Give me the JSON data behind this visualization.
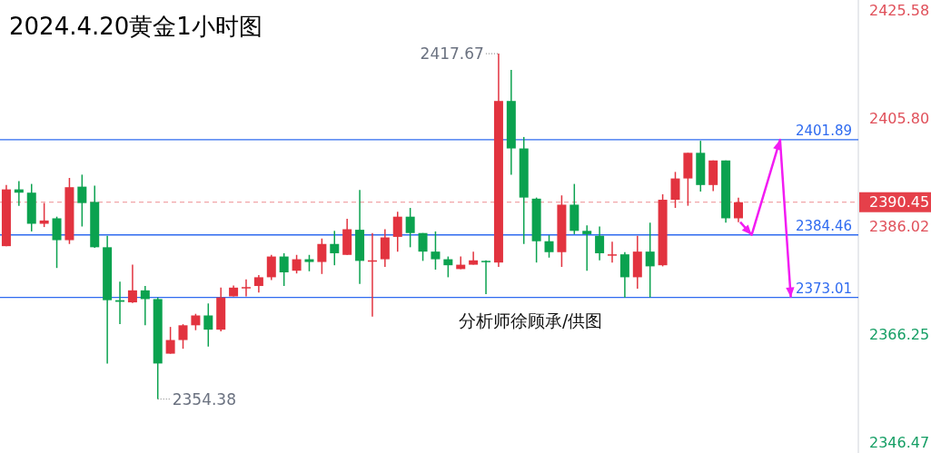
{
  "chart_data": {
    "type": "candlestick",
    "title": "2024.4.20黄金1小时图",
    "categories": [
      null,
      null,
      null,
      null,
      null,
      null,
      null,
      null,
      null,
      null,
      null,
      null,
      null,
      null,
      null,
      null,
      null,
      null,
      null,
      null,
      null,
      null,
      null,
      null,
      null,
      null,
      null,
      null,
      null,
      null,
      null,
      null,
      null,
      null,
      null,
      null,
      null,
      null,
      null,
      null,
      null,
      null,
      null,
      null,
      null,
      null,
      null,
      null,
      null,
      null,
      null,
      null,
      null,
      null,
      null,
      null,
      null,
      null,
      null,
      null,
      null,
      null,
      null,
      null,
      null,
      null,
      null,
      null
    ],
    "ohlc": [
      [
        2382.4,
        2393.6,
        2382.4,
        2392.8
      ],
      [
        2392.8,
        2394.3,
        2389.8,
        2392.2
      ],
      [
        2392.2,
        2393.8,
        2385.1,
        2386.5
      ],
      [
        2386.5,
        2390.3,
        2385.9,
        2387.1
      ],
      [
        2387.5,
        2387.8,
        2378.4,
        2383.5
      ],
      [
        2383.5,
        2394.9,
        2382.8,
        2393.2
      ],
      [
        2393.3,
        2395.5,
        2386.0,
        2390.3
      ],
      [
        2390.5,
        2393.5,
        2382.1,
        2382.2
      ],
      [
        2382.2,
        2384.3,
        2360.9,
        2372.5
      ],
      [
        2372.5,
        2375.9,
        2368.1,
        2372.2
      ],
      [
        2372.1,
        2379.0,
        2372.0,
        2374.3
      ],
      [
        2374.3,
        2375.1,
        2367.9,
        2372.7
      ],
      [
        2372.7,
        2373.0,
        2354.38,
        2360.9
      ],
      [
        2362.7,
        2367.6,
        2362.7,
        2365.2
      ],
      [
        2365.2,
        2368.1,
        2363.6,
        2367.9
      ],
      [
        2367.9,
        2370.0,
        2367.0,
        2369.7
      ],
      [
        2369.7,
        2371.9,
        2364.0,
        2367.1
      ],
      [
        2367.1,
        2374.8,
        2366.8,
        2373.0
      ],
      [
        2373.2,
        2375.2,
        2373.2,
        2374.8
      ],
      [
        2374.8,
        2376.3,
        2373.2,
        2374.9
      ],
      [
        2375.1,
        2377.1,
        2373.9,
        2376.7
      ],
      [
        2376.7,
        2380.8,
        2376.2,
        2380.5
      ],
      [
        2380.5,
        2381.1,
        2375.1,
        2377.6
      ],
      [
        2377.9,
        2380.8,
        2377.4,
        2380.0
      ],
      [
        2380.0,
        2380.8,
        2377.8,
        2379.5
      ],
      [
        2379.5,
        2383.8,
        2377.3,
        2382.8
      ],
      [
        2382.8,
        2385.2,
        2378.9,
        2381.1
      ],
      [
        2380.8,
        2387.4,
        2380.8,
        2385.5
      ],
      [
        2385.4,
        2392.7,
        2375.5,
        2379.7
      ],
      [
        2379.7,
        2384.8,
        2369.5,
        2379.8
      ],
      [
        2380.0,
        2385.5,
        2378.6,
        2384.0
      ],
      [
        2384.1,
        2388.7,
        2381.4,
        2387.8
      ],
      [
        2387.8,
        2389.4,
        2382.2,
        2384.8
      ],
      [
        2384.8,
        2384.8,
        2379.7,
        2381.4
      ],
      [
        2381.4,
        2385.1,
        2378.1,
        2380.0
      ],
      [
        2380.0,
        2380.5,
        2376.7,
        2378.9
      ],
      [
        2378.2,
        2380.5,
        2378.2,
        2379.0
      ],
      [
        2379.0,
        2381.4,
        2379.0,
        2379.8
      ],
      [
        2379.7,
        2379.8,
        2373.6,
        2379.5
      ],
      [
        2379.4,
        2417.67,
        2378.6,
        2409.0
      ],
      [
        2409.0,
        2414.7,
        2395.5,
        2400.3
      ],
      [
        2400.3,
        2402.4,
        2382.8,
        2391.3
      ],
      [
        2391.1,
        2391.3,
        2379.4,
        2383.3
      ],
      [
        2383.3,
        2384.4,
        2380.3,
        2381.3
      ],
      [
        2381.3,
        2391.7,
        2378.6,
        2390.0
      ],
      [
        2390.0,
        2393.8,
        2384.6,
        2385.2
      ],
      [
        2385.2,
        2386.2,
        2377.9,
        2384.6
      ],
      [
        2384.3,
        2386.0,
        2379.8,
        2381.1
      ],
      [
        2380.8,
        2383.2,
        2379.4,
        2380.9
      ],
      [
        2380.9,
        2381.3,
        2373.0,
        2376.7
      ],
      [
        2376.7,
        2384.3,
        2374.6,
        2381.4
      ],
      [
        2381.4,
        2386.7,
        2373.0,
        2378.7
      ],
      [
        2378.9,
        2391.9,
        2378.7,
        2390.9
      ],
      [
        2390.9,
        2396.0,
        2389.4,
        2394.8
      ],
      [
        2394.8,
        2399.5,
        2389.8,
        2399.5
      ],
      [
        2399.5,
        2401.7,
        2392.4,
        2393.6
      ],
      [
        2393.6,
        2398.1,
        2392.5,
        2398.1
      ],
      [
        2398.1,
        2398.1,
        2386.7,
        2387.5
      ],
      [
        2387.5,
        2391.3,
        2386.8,
        2390.45
      ],
      null,
      null,
      null,
      null,
      null,
      null,
      null,
      null,
      null
    ],
    "ylim": [
      2344.5,
      2427.5
    ],
    "yticks": [
      2425.58,
      {
        "value": 2405.8,
        "label": "2405.80"
      },
      2386.02,
      2366.25,
      2346.47
    ],
    "ref_lines": [
      {
        "axis": "y",
        "value": 2401.89,
        "label": "2401.89",
        "color": "#2f6bf0"
      },
      {
        "axis": "y",
        "value": 2384.46,
        "label": "2384.46",
        "color": "#2f6bf0"
      },
      {
        "axis": "y",
        "value": 2373.01,
        "label": "2373.01",
        "color": "#2f6bf0"
      },
      {
        "axis": "y",
        "value": 2390.45,
        "label": "2390.45",
        "color": "#e5404a",
        "line_style": "dashed"
      }
    ],
    "annotations": [
      "2417.67",
      "2354.38",
      "分析师徐顾承/供图"
    ]
  }
}
